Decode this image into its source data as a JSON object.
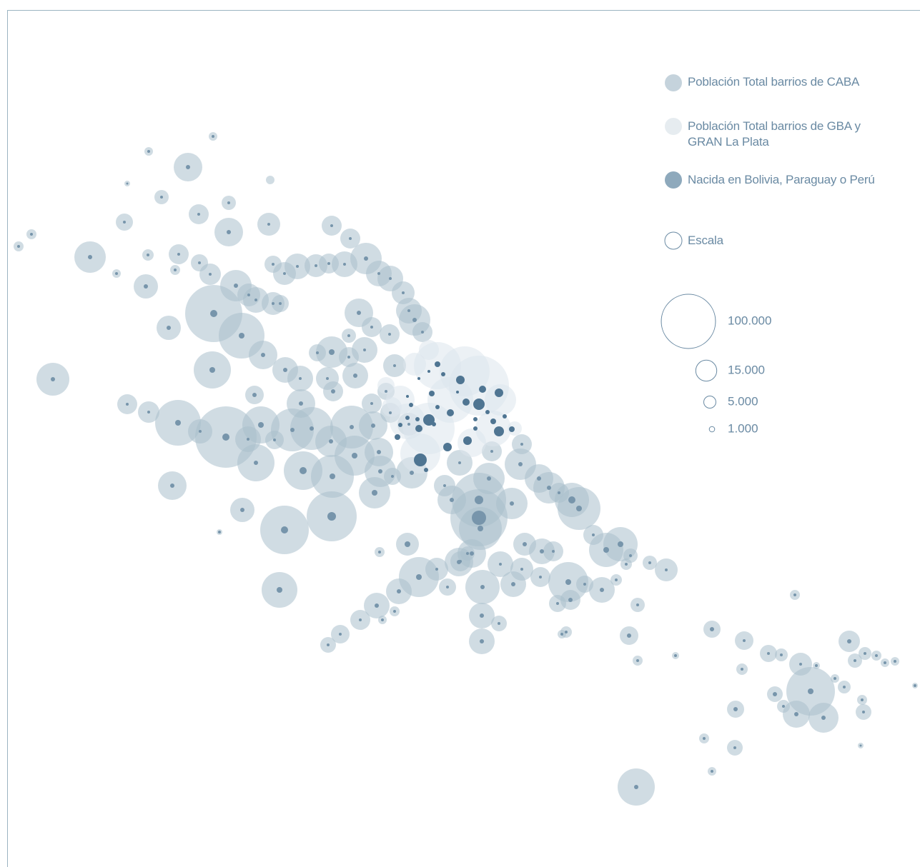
{
  "legend": {
    "items": [
      "Población Total barrios de CABA",
      "Población Total barrios de GBA y GRAN La Plata",
      "Nacida en Bolivia, Paraguay o Perú",
      "Escala"
    ]
  },
  "scale": {
    "ticks": [
      {
        "value": 100000,
        "label": "100.000"
      },
      {
        "value": 15000,
        "label": "15.000"
      },
      {
        "value": 5000,
        "label": "5.000"
      },
      {
        "value": 1000,
        "label": "1.000"
      }
    ]
  }
}
